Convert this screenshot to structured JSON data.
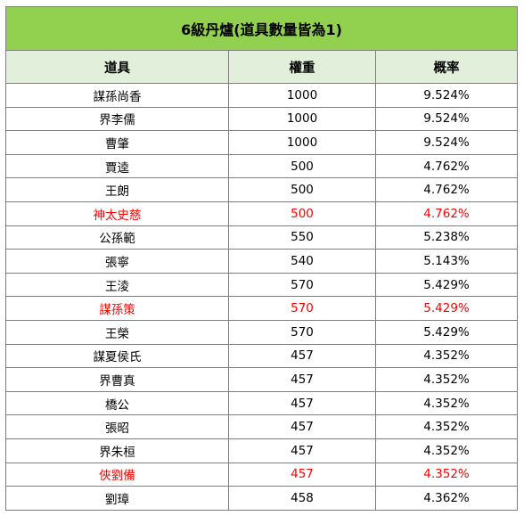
{
  "title": "6級丹爐(道具數量皆為1)",
  "headers": [
    "道具",
    "權重",
    "概率"
  ],
  "colors": {
    "title_bg": "#92d050",
    "header_bg": "#e2efda",
    "highlight_text": "#ff0000",
    "border": "#7f7f7f"
  },
  "rows": [
    {
      "item": "謀孫尚香",
      "weight": "1000",
      "prob": "9.524%",
      "highlight": false
    },
    {
      "item": "界李儒",
      "weight": "1000",
      "prob": "9.524%",
      "highlight": false
    },
    {
      "item": "曹肇",
      "weight": "1000",
      "prob": "9.524%",
      "highlight": false
    },
    {
      "item": "賈逵",
      "weight": "500",
      "prob": "4.762%",
      "highlight": false
    },
    {
      "item": "王朗",
      "weight": "500",
      "prob": "4.762%",
      "highlight": false
    },
    {
      "item": "神太史慈",
      "weight": "500",
      "prob": "4.762%",
      "highlight": true
    },
    {
      "item": "公孫範",
      "weight": "550",
      "prob": "5.238%",
      "highlight": false
    },
    {
      "item": "張寧",
      "weight": "540",
      "prob": "5.143%",
      "highlight": false
    },
    {
      "item": "王淩",
      "weight": "570",
      "prob": "5.429%",
      "highlight": false
    },
    {
      "item": "謀孫策",
      "weight": "570",
      "prob": "5.429%",
      "highlight": true
    },
    {
      "item": "王榮",
      "weight": "570",
      "prob": "5.429%",
      "highlight": false
    },
    {
      "item": "謀夏侯氏",
      "weight": "457",
      "prob": "4.352%",
      "highlight": false
    },
    {
      "item": "界曹真",
      "weight": "457",
      "prob": "4.352%",
      "highlight": false
    },
    {
      "item": "橋公",
      "weight": "457",
      "prob": "4.352%",
      "highlight": false
    },
    {
      "item": "張昭",
      "weight": "457",
      "prob": "4.352%",
      "highlight": false
    },
    {
      "item": "界朱桓",
      "weight": "457",
      "prob": "4.352%",
      "highlight": false
    },
    {
      "item": "俠劉備",
      "weight": "457",
      "prob": "4.352%",
      "highlight": true
    },
    {
      "item": "劉璋",
      "weight": "458",
      "prob": "4.362%",
      "highlight": false
    }
  ]
}
